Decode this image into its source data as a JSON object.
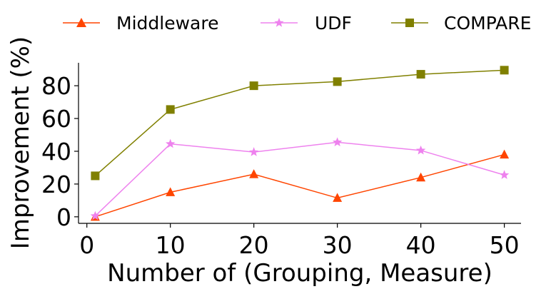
{
  "chart_data": {
    "type": "line",
    "title": "",
    "xlabel": "Number of (Grouping, Measure)",
    "ylabel": "Improvement (%)",
    "x": [
      1,
      10,
      20,
      30,
      40,
      50
    ],
    "xticks": [
      "0",
      "10",
      "20",
      "30",
      "40",
      "50"
    ],
    "yticks": [
      "0",
      "20",
      "40",
      "60",
      "80"
    ],
    "xlim": [
      -1,
      52
    ],
    "ylim": [
      -4,
      94
    ],
    "legend_position": "top",
    "series": [
      {
        "name": "Middleware",
        "values": [
          0,
          15,
          26,
          11.5,
          24,
          38
        ],
        "color": "#ff4500",
        "marker": "triangle"
      },
      {
        "name": "UDF",
        "values": [
          0.5,
          44.5,
          39.5,
          45.5,
          40.5,
          25.5
        ],
        "color": "#ee82ee",
        "marker": "star"
      },
      {
        "name": "COMPARE",
        "values": [
          25,
          65.5,
          80,
          82.5,
          87,
          89.5
        ],
        "color": "#808000",
        "marker": "square"
      }
    ]
  }
}
